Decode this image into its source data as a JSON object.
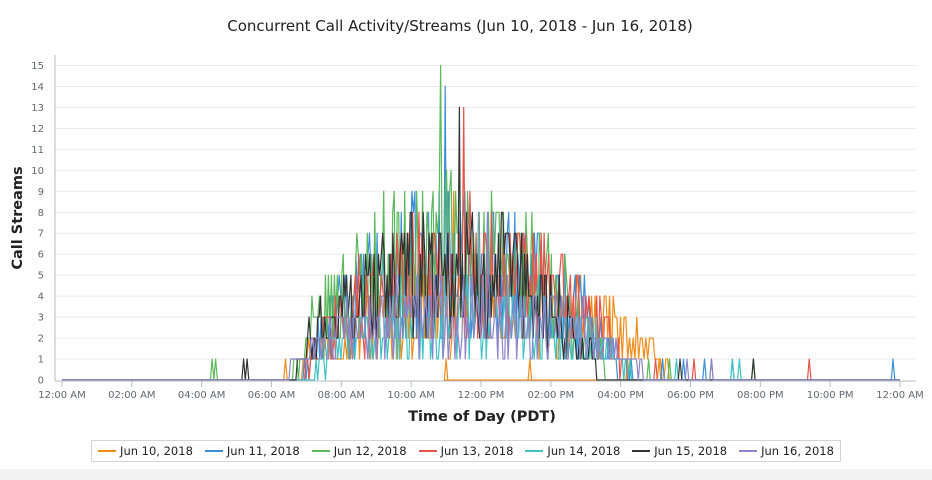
{
  "chart_data": {
    "type": "line",
    "title": "Concurrent Call Activity/Streams (Jun 10, 2018 - Jun 16, 2018)",
    "xlabel": "Time of Day (PDT)",
    "ylabel": "Call Streams",
    "x_tick_labels": [
      "12:00 AM",
      "02:00 AM",
      "04:00 AM",
      "06:00 AM",
      "08:00 AM",
      "10:00 AM",
      "12:00 PM",
      "02:00 PM",
      "04:00 PM",
      "06:00 PM",
      "08:00 PM",
      "10:00 PM",
      "12:00 AM"
    ],
    "y_ticks": [
      0,
      1,
      2,
      3,
      4,
      5,
      6,
      7,
      8,
      9,
      10,
      11,
      12,
      13,
      14,
      15
    ],
    "xlim_hours": [
      0,
      24
    ],
    "ylim": [
      0,
      15.5
    ],
    "grid": "horizontal",
    "legend_position": "bottom-center",
    "series": [
      {
        "name": "Jun 10, 2018",
        "color": "#f08c1a",
        "peak": 9,
        "active_hours": [
          6.6,
          17.5
        ],
        "trail_hours": [
          6.4,
          11.0,
          13.4,
          16.2,
          17.1
        ]
      },
      {
        "name": "Jun 11, 2018",
        "color": "#3a8fd8",
        "peak": 14,
        "active_hours": [
          6.9,
          16.0
        ],
        "trail_hours": [
          16.3,
          17.2,
          17.8,
          18.4,
          19.2,
          23.8
        ]
      },
      {
        "name": "Jun 12, 2018",
        "color": "#5cb85c",
        "peak": 15,
        "active_hours": [
          6.6,
          15.6
        ],
        "trail_hours": [
          4.3,
          4.4,
          16.8,
          17.4,
          18.6,
          19.8
        ]
      },
      {
        "name": "Jun 13, 2018",
        "color": "#e5534b",
        "peak": 13,
        "active_hours": [
          6.9,
          16.2
        ],
        "trail_hours": [
          17.0,
          18.1,
          21.4
        ]
      },
      {
        "name": "Jun 14, 2018",
        "color": "#40c2c2",
        "peak": 8,
        "active_hours": [
          7.1,
          16.4
        ],
        "trail_hours": [
          17.6,
          19.2,
          19.4
        ]
      },
      {
        "name": "Jun 15, 2018",
        "color": "#333333",
        "peak": 13,
        "active_hours": [
          6.7,
          15.4
        ],
        "trail_hours": [
          5.2,
          5.3,
          17.7,
          19.8
        ]
      },
      {
        "name": "Jun 16, 2018",
        "color": "#8c85c9",
        "peak": 8,
        "active_hours": [
          6.4,
          16.7
        ],
        "trail_hours": [
          17.9,
          18.6
        ]
      }
    ]
  }
}
